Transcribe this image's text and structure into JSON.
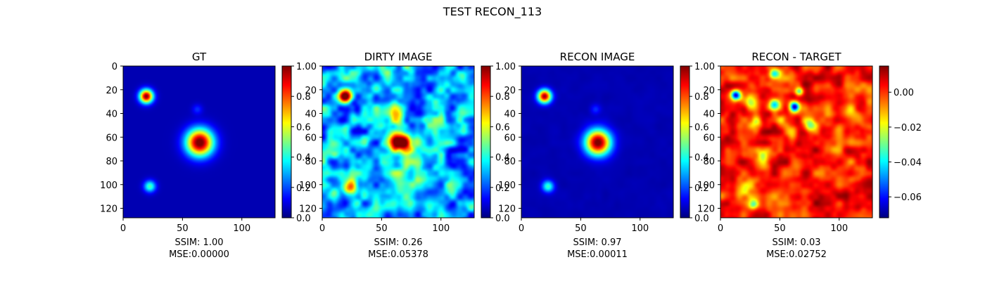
{
  "figure": {
    "suptitle": "TEST RECON_113"
  },
  "colormap": {
    "name": "jet",
    "stops": [
      "#00007f",
      "#0000ff",
      "#007fff",
      "#00ffff",
      "#7fff7f",
      "#ffff00",
      "#ff7f00",
      "#ff0000",
      "#7f0000"
    ]
  },
  "chart_data": [
    {
      "type": "heatmap",
      "title": "GT",
      "xlim": [
        0,
        128
      ],
      "ylim": [
        128,
        0
      ],
      "xticks": [
        "0",
        "50",
        "100"
      ],
      "yticks": [
        "0",
        "20",
        "40",
        "60",
        "80",
        "100",
        "120"
      ],
      "colorbar": {
        "range": [
          0,
          1
        ],
        "ticks": [
          "0.0",
          "0.2",
          "0.4",
          "0.6",
          "0.8",
          "1.0"
        ]
      },
      "sources": [
        {
          "x": 64,
          "y": 64,
          "amp": 1.0,
          "sigma": 8
        },
        {
          "x": 19,
          "y": 25,
          "amp": 0.95,
          "sigma": 4
        },
        {
          "x": 22,
          "y": 101,
          "amp": 0.4,
          "sigma": 3.5
        },
        {
          "x": 62,
          "y": 36,
          "amp": 0.12,
          "sigma": 3
        }
      ],
      "background": 0.05,
      "noise": 0.0,
      "stats": {
        "ssim": "SSIM: 1.00",
        "mse": "MSE:0.00000"
      }
    },
    {
      "type": "heatmap",
      "title": "DIRTY IMAGE",
      "xlim": [
        0,
        128
      ],
      "ylim": [
        128,
        0
      ],
      "xticks": [
        "0",
        "50",
        "100"
      ],
      "yticks": [
        "0",
        "20",
        "40",
        "60",
        "80",
        "100",
        "120"
      ],
      "colorbar": {
        "range": [
          0,
          1
        ],
        "ticks": [
          "0.0",
          "0.2",
          "0.4",
          "0.6",
          "0.8",
          "1.0"
        ]
      },
      "sources": [
        {
          "x": 64,
          "y": 64,
          "amp": 0.92,
          "sigma": 6
        },
        {
          "x": 19,
          "y": 25,
          "amp": 0.9,
          "sigma": 4
        },
        {
          "x": 22,
          "y": 101,
          "amp": 0.55,
          "sigma": 4.5
        },
        {
          "x": 60,
          "y": 40,
          "amp": 0.25,
          "sigma": 8
        },
        {
          "x": 70,
          "y": 90,
          "amp": 0.2,
          "sigma": 10
        }
      ],
      "background": 0.3,
      "noise": 0.22,
      "stats": {
        "ssim": "SSIM: 0.26",
        "mse": "MSE:0.05378"
      }
    },
    {
      "type": "heatmap",
      "title": "RECON IMAGE",
      "xlim": [
        0,
        128
      ],
      "ylim": [
        128,
        0
      ],
      "xticks": [
        "0",
        "50",
        "100"
      ],
      "yticks": [
        "0",
        "20",
        "40",
        "60",
        "80",
        "100",
        "120"
      ],
      "colorbar": {
        "range": [
          0,
          1
        ],
        "ticks": [
          "0.0",
          "0.2",
          "0.4",
          "0.6",
          "0.8",
          "1.0"
        ]
      },
      "sources": [
        {
          "x": 64,
          "y": 64,
          "amp": 0.98,
          "sigma": 7.5
        },
        {
          "x": 19,
          "y": 25,
          "amp": 0.92,
          "sigma": 4
        },
        {
          "x": 22,
          "y": 101,
          "amp": 0.38,
          "sigma": 3.5
        },
        {
          "x": 62,
          "y": 36,
          "amp": 0.12,
          "sigma": 3
        }
      ],
      "background": 0.05,
      "noise": 0.01,
      "stats": {
        "ssim": "SSIM: 0.97",
        "mse": "MSE:0.00011"
      }
    },
    {
      "type": "heatmap",
      "title": "RECON - TARGET",
      "xlim": [
        0,
        128
      ],
      "ylim": [
        128,
        0
      ],
      "xticks": [
        "0",
        "50",
        "100"
      ],
      "yticks": [
        "0",
        "20",
        "40",
        "60",
        "80",
        "100",
        "120"
      ],
      "colorbar": {
        "range": [
          -0.072,
          0.015
        ],
        "ticks": [
          "0.00",
          "−0.02",
          "−0.04",
          "−0.06"
        ],
        "tick_values": [
          0,
          -0.02,
          -0.04,
          -0.06
        ]
      },
      "sources": [
        {
          "x": 12,
          "y": 24,
          "amp": -0.07,
          "sigma": 3
        },
        {
          "x": 62,
          "y": 34,
          "amp": -0.072,
          "sigma": 3
        },
        {
          "x": 45,
          "y": 32,
          "amp": -0.05,
          "sigma": 3.5
        },
        {
          "x": 45,
          "y": 6,
          "amp": -0.04,
          "sigma": 3
        },
        {
          "x": 66,
          "y": 21,
          "amp": -0.035,
          "sigma": 2.5
        },
        {
          "x": 75,
          "y": 50,
          "amp": -0.03,
          "sigma": 4
        },
        {
          "x": 60,
          "y": 55,
          "amp": -0.03,
          "sigma": 4
        },
        {
          "x": 25,
          "y": 30,
          "amp": -0.025,
          "sigma": 4
        },
        {
          "x": 30,
          "y": 47,
          "amp": -0.025,
          "sigma": 4
        },
        {
          "x": 52,
          "y": 45,
          "amp": -0.02,
          "sigma": 4
        },
        {
          "x": 27,
          "y": 116,
          "amp": -0.03,
          "sigma": 3
        },
        {
          "x": 20,
          "y": 101,
          "amp": -0.02,
          "sigma": 5
        },
        {
          "x": 65,
          "y": 64,
          "amp": 0.012,
          "sigma": 10
        },
        {
          "x": 35,
          "y": 75,
          "amp": -0.015,
          "sigma": 5
        },
        {
          "x": 90,
          "y": 70,
          "amp": -0.012,
          "sigma": 6
        },
        {
          "x": 110,
          "y": 40,
          "amp": -0.012,
          "sigma": 6
        }
      ],
      "background": 0.002,
      "noise": 0.012,
      "stats": {
        "ssim": "SSIM: 0.03",
        "mse": "MSE:0.02752"
      }
    }
  ]
}
